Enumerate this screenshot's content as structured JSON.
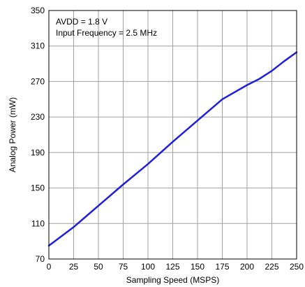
{
  "chart_data": {
    "type": "line",
    "title": "",
    "xlabel": "Sampling Speed (MSPS)",
    "ylabel": "Analog Power (mW)",
    "xlim": [
      0,
      250
    ],
    "ylim": [
      70,
      350
    ],
    "xticks": [
      0,
      25,
      50,
      75,
      100,
      125,
      150,
      175,
      200,
      225,
      250
    ],
    "yticks": [
      70,
      110,
      150,
      190,
      230,
      270,
      310,
      350
    ],
    "grid": true,
    "annotations": [
      "AVDD = 1.8 V",
      "Input Frequency = 2.5 MHz"
    ],
    "series": [
      {
        "name": "",
        "color": "#1f1fdc",
        "x": [
          0,
          25,
          50,
          75,
          100,
          125,
          150,
          175,
          200,
          212.5,
          225,
          237.5,
          250
        ],
        "y": [
          85,
          106,
          130,
          154,
          177,
          202,
          226,
          250,
          266,
          273,
          282,
          293,
          303
        ]
      }
    ]
  }
}
